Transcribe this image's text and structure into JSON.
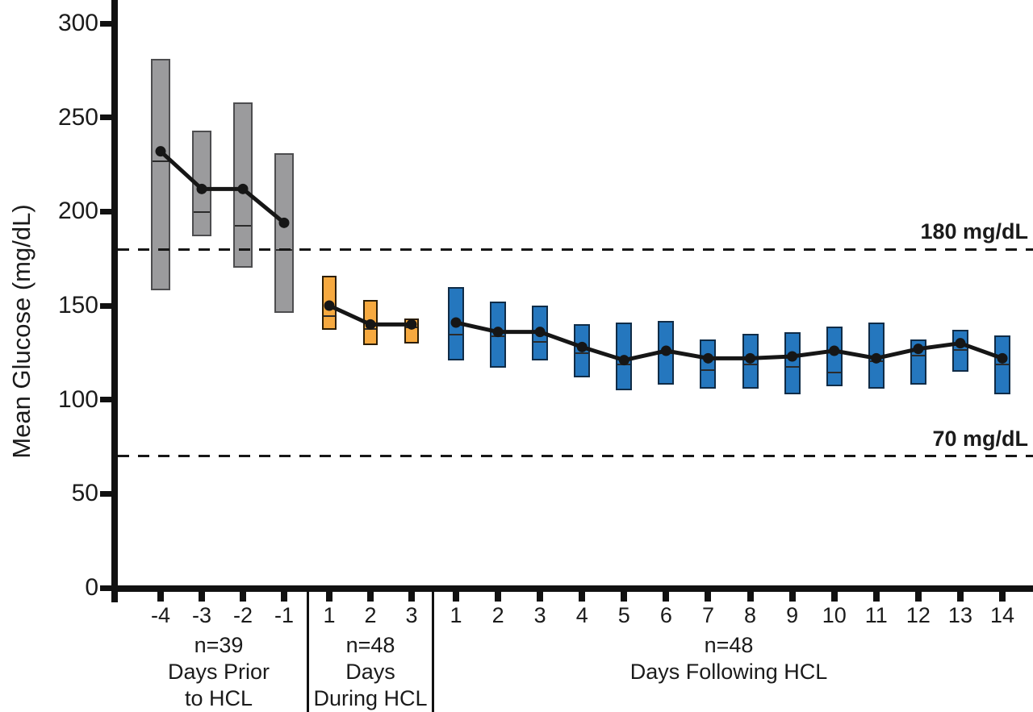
{
  "chart_data": {
    "type": "box-line",
    "title": "",
    "ylabel": "Mean Glucose (mg/dL)",
    "y_ticks": [
      0,
      50,
      100,
      150,
      200,
      250,
      300
    ],
    "ylim": [
      0,
      313
    ],
    "grid": false,
    "reference_lines": [
      {
        "value": 180,
        "label": "180 mg/dL"
      },
      {
        "value": 70,
        "label": "70 mg/dL"
      }
    ],
    "colors": {
      "line": "#161616",
      "text": "#1B1B1B"
    },
    "groups": [
      {
        "id": "prior",
        "caption_lines": [
          "n=39",
          "Days Prior",
          "to HCL"
        ],
        "fill": "#9B9B9D",
        "border": "#4D4D4F",
        "days": [
          {
            "day": "-4",
            "q1": 158,
            "q3": 281,
            "median": 227,
            "mean": 232
          },
          {
            "day": "-3",
            "q1": 187,
            "q3": 243,
            "median": 200,
            "mean": 212
          },
          {
            "day": "-2",
            "q1": 170,
            "q3": 258,
            "median": 193,
            "mean": 212
          },
          {
            "day": "-1",
            "q1": 146,
            "q3": 231,
            "median": 180,
            "mean": 194
          }
        ]
      },
      {
        "id": "during",
        "caption_lines": [
          "n=48",
          "Days",
          "During HCL"
        ],
        "fill": "#F6A93F",
        "border": "#2B1D05",
        "days": [
          {
            "day": "1",
            "q1": 137,
            "q3": 166,
            "median": 145,
            "mean": 150
          },
          {
            "day": "2",
            "q1": 129,
            "q3": 153,
            "median": 138,
            "mean": 140
          },
          {
            "day": "3",
            "q1": 130,
            "q3": 143,
            "median": 139,
            "mean": 140
          }
        ]
      },
      {
        "id": "following",
        "caption_lines": [
          "n=48",
          "Days Following HCL"
        ],
        "fill": "#2577BE",
        "border": "#102C47",
        "days": [
          {
            "day": "1",
            "q1": 121,
            "q3": 160,
            "median": 135,
            "mean": 141
          },
          {
            "day": "2",
            "q1": 117,
            "q3": 152,
            "median": 134,
            "mean": 136
          },
          {
            "day": "3",
            "q1": 121,
            "q3": 150,
            "median": 131,
            "mean": 136
          },
          {
            "day": "4",
            "q1": 112,
            "q3": 140,
            "median": 125,
            "mean": 128
          },
          {
            "day": "5",
            "q1": 105,
            "q3": 141,
            "median": 119,
            "mean": 121
          },
          {
            "day": "6",
            "q1": 108,
            "q3": 142,
            "median": 125,
            "mean": 126
          },
          {
            "day": "7",
            "q1": 106,
            "q3": 132,
            "median": 116,
            "mean": 122
          },
          {
            "day": "8",
            "q1": 106,
            "q3": 135,
            "median": 119,
            "mean": 122
          },
          {
            "day": "9",
            "q1": 103,
            "q3": 136,
            "median": 118,
            "mean": 123
          },
          {
            "day": "10",
            "q1": 107,
            "q3": 139,
            "median": 115,
            "mean": 126
          },
          {
            "day": "11",
            "q1": 106,
            "q3": 141,
            "median": 121,
            "mean": 122
          },
          {
            "day": "12",
            "q1": 108,
            "q3": 132,
            "median": 124,
            "mean": 127
          },
          {
            "day": "13",
            "q1": 115,
            "q3": 137,
            "median": 127,
            "mean": 130
          },
          {
            "day": "14",
            "q1": 103,
            "q3": 134,
            "median": 119,
            "mean": 122
          }
        ]
      }
    ]
  }
}
